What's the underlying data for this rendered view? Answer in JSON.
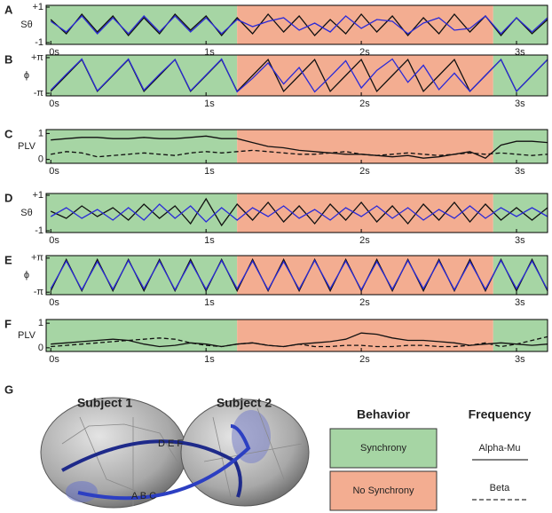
{
  "chart_data": [
    {
      "type": "line",
      "label": "A",
      "ylabel": "Sθ",
      "x": [
        0,
        0.1,
        0.2,
        0.3,
        0.4,
        0.5,
        0.6,
        0.7,
        0.8,
        0.9,
        1,
        1.1,
        1.2,
        1.3,
        1.4,
        1.5,
        1.6,
        1.7,
        1.8,
        1.9,
        2,
        2.1,
        2.2,
        2.3,
        2.4,
        2.5,
        2.6,
        2.7,
        2.8,
        2.9,
        3,
        3.1,
        3.2
      ],
      "series": [
        {
          "color": "#111111",
          "line_style": "solid",
          "values": [
            0.3,
            -0.5,
            0.6,
            -0.4,
            0.5,
            -0.6,
            0.4,
            -0.5,
            0.6,
            -0.3,
            0.5,
            -0.6,
            0.4,
            -0.5,
            0.6,
            -0.4,
            0.5,
            -0.6,
            0.3,
            -0.5,
            0.6,
            -0.4,
            0.5,
            -0.6,
            0.4,
            -0.5,
            0.6,
            -0.4,
            0.5,
            -0.6,
            0.4,
            -0.5,
            0.3
          ]
        },
        {
          "color": "#2a2ad8",
          "line_style": "solid",
          "values": [
            0.2,
            -0.4,
            0.5,
            -0.5,
            0.4,
            -0.5,
            0.5,
            -0.4,
            0.5,
            -0.4,
            0.4,
            -0.5,
            0.3,
            -0.1,
            0.2,
            0.4,
            -0.3,
            0.1,
            -0.4,
            0.5,
            -0.2,
            0.3,
            0.2,
            -0.5,
            0.1,
            0.4,
            -0.3,
            -0.2,
            0.5,
            -0.5,
            0.4,
            -0.4,
            0.4
          ]
        }
      ],
      "xlim": [
        -0.03,
        3.2
      ],
      "ylim": [
        -1.1,
        1.1
      ],
      "xticks": [
        {
          "value": 0,
          "label": "0s"
        },
        {
          "value": 1,
          "label": "1s"
        },
        {
          "value": 2,
          "label": "2s"
        },
        {
          "value": 3,
          "label": "3s"
        }
      ],
      "yticks": [
        {
          "value": 1,
          "label": "+1"
        },
        {
          "value": -1,
          "label": "-1"
        }
      ],
      "regions": [
        {
          "start": -0.03,
          "end": 1.2,
          "color": "#a6d5a4"
        },
        {
          "start": 1.2,
          "end": 2.85,
          "color": "#f3ad91"
        },
        {
          "start": 2.85,
          "end": 3.2,
          "color": "#a6d5a4"
        }
      ]
    },
    {
      "type": "line",
      "label": "B",
      "ylabel": "ϕ",
      "x": [
        0,
        0.1,
        0.2,
        0.3,
        0.4,
        0.5,
        0.6,
        0.7,
        0.8,
        0.9,
        1,
        1.1,
        1.2,
        1.3,
        1.4,
        1.5,
        1.6,
        1.7,
        1.8,
        1.9,
        2,
        2.1,
        2.2,
        2.3,
        2.4,
        2.5,
        2.6,
        2.7,
        2.8,
        2.9,
        3,
        3.1,
        3.2
      ],
      "series": [
        {
          "color": "#111111",
          "line_style": "solid",
          "values": [
            -2.8,
            0,
            2.8,
            -2.8,
            0,
            2.8,
            -2.8,
            0,
            2.8,
            -2.8,
            0,
            2.8,
            -2.8,
            0,
            2.8,
            -2.8,
            0,
            2.8,
            -2.8,
            0,
            2.8,
            -2.8,
            0,
            2.8,
            -2.8,
            0,
            2.8,
            -2.8,
            0,
            2.8,
            -2.8,
            0,
            2.8
          ]
        },
        {
          "color": "#2a2ad8",
          "line_style": "solid",
          "values": [
            -2.6,
            0.2,
            2.9,
            -2.7,
            0.1,
            2.9,
            -2.6,
            0.2,
            2.8,
            -2.7,
            0.1,
            2.9,
            -2.9,
            -0.5,
            2.2,
            -1.5,
            1.4,
            -2.9,
            -0.2,
            2.6,
            -2.2,
            0.9,
            2.9,
            -1.2,
            1.8,
            -2.5,
            0.4,
            -2.8,
            0,
            2.8,
            -2.8,
            0,
            2.8
          ]
        }
      ],
      "xlim": [
        -0.03,
        3.2
      ],
      "ylim": [
        -3.6,
        3.6
      ],
      "xticks": [
        {
          "value": 0,
          "label": "0s"
        },
        {
          "value": 1,
          "label": "1s"
        },
        {
          "value": 2,
          "label": "2s"
        },
        {
          "value": 3,
          "label": "3s"
        }
      ],
      "yticks": [
        {
          "value": 3.1416,
          "label": "+π"
        },
        {
          "value": -3.1416,
          "label": "-π"
        }
      ],
      "regions": [
        {
          "start": -0.03,
          "end": 1.2,
          "color": "#a6d5a4"
        },
        {
          "start": 1.2,
          "end": 2.85,
          "color": "#f3ad91"
        },
        {
          "start": 2.85,
          "end": 3.2,
          "color": "#a6d5a4"
        }
      ]
    },
    {
      "type": "line",
      "label": "C",
      "ylabel": "PLV",
      "x": [
        0,
        0.1,
        0.2,
        0.3,
        0.4,
        0.5,
        0.6,
        0.7,
        0.8,
        0.9,
        1,
        1.1,
        1.2,
        1.3,
        1.4,
        1.5,
        1.6,
        1.7,
        1.8,
        1.9,
        2,
        2.1,
        2.2,
        2.3,
        2.4,
        2.5,
        2.6,
        2.7,
        2.8,
        2.9,
        3,
        3.1,
        3.2
      ],
      "series": [
        {
          "color": "#111111",
          "line_style": "solid",
          "values": [
            0.75,
            0.8,
            0.85,
            0.85,
            0.8,
            0.8,
            0.85,
            0.8,
            0.8,
            0.85,
            0.9,
            0.8,
            0.8,
            0.65,
            0.5,
            0.45,
            0.35,
            0.3,
            0.25,
            0.2,
            0.2,
            0.15,
            0.1,
            0.15,
            0.05,
            0.1,
            0.2,
            0.3,
            0.05,
            0.55,
            0.7,
            0.7,
            0.65
          ]
        },
        {
          "color": "#111111",
          "line_style": "dashed",
          "values": [
            0.2,
            0.3,
            0.25,
            0.1,
            0.15,
            0.2,
            0.25,
            0.2,
            0.15,
            0.25,
            0.3,
            0.25,
            0.3,
            0.35,
            0.3,
            0.25,
            0.2,
            0.2,
            0.25,
            0.3,
            0.2,
            0.15,
            0.2,
            0.25,
            0.2,
            0.15,
            0.2,
            0.25,
            0.2,
            0.25,
            0.2,
            0.15,
            0.2
          ]
        }
      ],
      "xlim": [
        -0.03,
        3.2
      ],
      "ylim": [
        -0.15,
        1.15
      ],
      "xticks": [
        {
          "value": 0,
          "label": "0s"
        },
        {
          "value": 1,
          "label": "1s"
        },
        {
          "value": 2,
          "label": "2s"
        },
        {
          "value": 3,
          "label": "3s"
        }
      ],
      "yticks": [
        1,
        0
      ],
      "regions": [
        {
          "start": -0.03,
          "end": 1.2,
          "color": "#a6d5a4"
        },
        {
          "start": 1.2,
          "end": 2.85,
          "color": "#f3ad91"
        },
        {
          "start": 2.85,
          "end": 3.2,
          "color": "#a6d5a4"
        }
      ]
    },
    {
      "type": "line",
      "label": "D",
      "ylabel": "Sθ",
      "x": [
        0,
        0.1,
        0.2,
        0.3,
        0.4,
        0.5,
        0.6,
        0.7,
        0.8,
        0.9,
        1,
        1.1,
        1.2,
        1.3,
        1.4,
        1.5,
        1.6,
        1.7,
        1.8,
        1.9,
        2,
        2.1,
        2.2,
        2.3,
        2.4,
        2.5,
        2.6,
        2.7,
        2.8,
        2.9,
        3,
        3.1,
        3.2
      ],
      "series": [
        {
          "color": "#111111",
          "line_style": "solid",
          "values": [
            0.1,
            -0.3,
            0.4,
            -0.2,
            0.3,
            -0.4,
            0.5,
            -0.3,
            0.4,
            -0.6,
            0.8,
            -0.7,
            0.5,
            -0.4,
            0.6,
            -0.5,
            0.4,
            -0.6,
            0.5,
            -0.4,
            0.6,
            -0.5,
            0.4,
            -0.6,
            0.5,
            -0.4,
            0.6,
            -0.5,
            0.5,
            -0.4,
            0.3,
            -0.4,
            0.3
          ]
        },
        {
          "color": "#2a2ad8",
          "line_style": "solid",
          "values": [
            -0.2,
            0.3,
            -0.3,
            0.2,
            -0.4,
            0.3,
            -0.4,
            0.5,
            -0.3,
            0.4,
            -0.5,
            0.3,
            -0.4,
            0.3,
            -0.2,
            0.4,
            -0.3,
            0.2,
            -0.4,
            0.3,
            -0.2,
            0.4,
            -0.3,
            0.3,
            -0.4,
            0.2,
            -0.3,
            0.4,
            -0.3,
            0.3,
            -0.2,
            0.3,
            -0.2
          ]
        }
      ],
      "xlim": [
        -0.03,
        3.2
      ],
      "ylim": [
        -1.1,
        1.1
      ],
      "xticks": [
        {
          "value": 0,
          "label": "0s"
        },
        {
          "value": 1,
          "label": "1s"
        },
        {
          "value": 2,
          "label": "2s"
        },
        {
          "value": 3,
          "label": "3s"
        }
      ],
      "yticks": [
        {
          "value": 1,
          "label": "+1"
        },
        {
          "value": -1,
          "label": "-1"
        }
      ],
      "regions": [
        {
          "start": -0.03,
          "end": 1.2,
          "color": "#a6d5a4"
        },
        {
          "start": 1.2,
          "end": 2.85,
          "color": "#f3ad91"
        },
        {
          "start": 2.85,
          "end": 3.2,
          "color": "#a6d5a4"
        }
      ]
    },
    {
      "type": "line",
      "label": "E",
      "ylabel": "ϕ",
      "x": [
        0,
        0.1,
        0.2,
        0.3,
        0.4,
        0.5,
        0.6,
        0.7,
        0.8,
        0.9,
        1,
        1.1,
        1.2,
        1.3,
        1.4,
        1.5,
        1.6,
        1.7,
        1.8,
        1.9,
        2,
        2.1,
        2.2,
        2.3,
        2.4,
        2.5,
        2.6,
        2.7,
        2.8,
        2.9,
        3,
        3.1,
        3.2
      ],
      "series": [
        {
          "color": "#111111",
          "line_style": "solid",
          "values": [
            -2.9,
            2.9,
            -2.9,
            2.9,
            -2.9,
            2.9,
            -2.9,
            2.9,
            -2.9,
            2.9,
            -2.9,
            2.9,
            -2.9,
            2.9,
            -2.9,
            2.9,
            -2.9,
            2.9,
            -2.9,
            2.9,
            -2.9,
            2.9,
            -2.9,
            2.9,
            -2.9,
            2.9,
            -2.9,
            2.9,
            -2.9,
            2.9,
            -2.9,
            2.9,
            -2.9
          ]
        },
        {
          "color": "#2a2ad8",
          "line_style": "solid",
          "values": [
            -2.5,
            2.6,
            -2.7,
            2.5,
            -2.6,
            2.7,
            -2.5,
            2.6,
            -2.7,
            2.5,
            -2.6,
            2.7,
            -2.5,
            2.6,
            -2.7,
            2.5,
            -2.6,
            2.7,
            -2.5,
            2.6,
            -2.7,
            2.5,
            -2.6,
            2.7,
            -2.5,
            2.6,
            -2.7,
            2.5,
            -2.6,
            2.7,
            -2.5,
            2.6,
            -2.7
          ]
        }
      ],
      "xlim": [
        -0.03,
        3.2
      ],
      "ylim": [
        -3.6,
        3.6
      ],
      "xticks": [
        {
          "value": 0,
          "label": "0s"
        },
        {
          "value": 1,
          "label": "1s"
        },
        {
          "value": 2,
          "label": "2s"
        },
        {
          "value": 3,
          "label": "3s"
        }
      ],
      "yticks": [
        {
          "value": 3.1416,
          "label": "+π"
        },
        {
          "value": -3.1416,
          "label": "-π"
        }
      ],
      "regions": [
        {
          "start": -0.03,
          "end": 1.2,
          "color": "#a6d5a4"
        },
        {
          "start": 1.2,
          "end": 2.85,
          "color": "#f3ad91"
        },
        {
          "start": 2.85,
          "end": 3.2,
          "color": "#a6d5a4"
        }
      ]
    },
    {
      "type": "line",
      "label": "F",
      "ylabel": "PLV",
      "x": [
        0,
        0.1,
        0.2,
        0.3,
        0.4,
        0.5,
        0.6,
        0.7,
        0.8,
        0.9,
        1,
        1.1,
        1.2,
        1.3,
        1.4,
        1.5,
        1.6,
        1.7,
        1.8,
        1.9,
        2,
        2.1,
        2.2,
        2.3,
        2.4,
        2.5,
        2.6,
        2.7,
        2.8,
        2.9,
        3,
        3.1,
        3.2
      ],
      "series": [
        {
          "color": "#111111",
          "line_style": "solid",
          "values": [
            0.15,
            0.2,
            0.25,
            0.3,
            0.35,
            0.3,
            0.15,
            0.05,
            0.1,
            0.2,
            0.15,
            0.05,
            0.15,
            0.2,
            0.1,
            0.05,
            0.15,
            0.2,
            0.25,
            0.35,
            0.6,
            0.55,
            0.4,
            0.3,
            0.3,
            0.25,
            0.2,
            0.1,
            0.15,
            0.2,
            0.15,
            0.1,
            0.15
          ]
        },
        {
          "color": "#111111",
          "line_style": "dashed",
          "values": [
            0.05,
            0.1,
            0.15,
            0.2,
            0.25,
            0.3,
            0.35,
            0.4,
            0.35,
            0.2,
            0.1,
            0.05,
            0.15,
            0.2,
            0.1,
            0.05,
            0.15,
            0.05,
            0.05,
            0.1,
            0.1,
            0.05,
            0.05,
            0.1,
            0.1,
            0.05,
            0.05,
            0.1,
            0.2,
            0.05,
            0.15,
            0.3,
            0.45
          ]
        }
      ],
      "xlim": [
        -0.03,
        3.2
      ],
      "ylim": [
        -0.15,
        1.15
      ],
      "xticks": [
        {
          "value": 0,
          "label": "0s"
        },
        {
          "value": 1,
          "label": "1s"
        },
        {
          "value": 2,
          "label": "2s"
        },
        {
          "value": 3,
          "label": "3s"
        }
      ],
      "yticks": [
        1,
        0
      ],
      "regions": [
        {
          "start": -0.03,
          "end": 1.2,
          "color": "#a6d5a4"
        },
        {
          "start": 1.2,
          "end": 2.85,
          "color": "#f3ad91"
        },
        {
          "start": 2.85,
          "end": 3.2,
          "color": "#a6d5a4"
        }
      ]
    }
  ],
  "panel_g": {
    "label": "G",
    "subjects": [
      "Subject 1",
      "Subject 2"
    ],
    "links": [
      "D E F",
      "A B C"
    ],
    "behavior_title": "Behavior",
    "behavior": [
      {
        "label": "Synchrony",
        "color": "#a6d5a4"
      },
      {
        "label": "No Synchrony",
        "color": "#f3ad91"
      }
    ],
    "frequency_title": "Frequency",
    "frequency": [
      {
        "label": "Alpha-Mu",
        "line_style": "solid"
      },
      {
        "label": "Beta",
        "line_style": "dashed"
      }
    ]
  }
}
